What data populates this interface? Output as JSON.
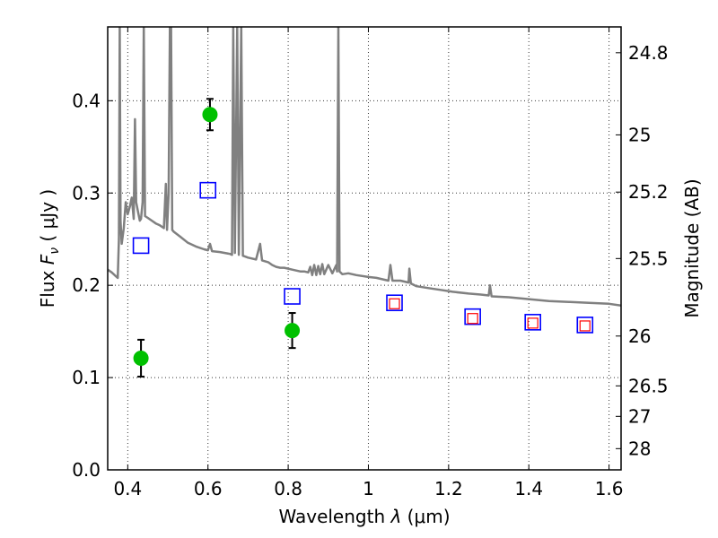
{
  "chart_data": {
    "type": "scatter",
    "xlabel": "Wavelength  λ (μm)",
    "ylabel": "Flux  F_ν  ( μJy )",
    "ylabel_parts": {
      "prefix": "Flux  ",
      "symbol": "F",
      "subscript": "ν",
      "suffix": "  ( μJy )"
    },
    "xlabel_parts": {
      "prefix": "Wavelength  ",
      "symbol": "λ",
      "suffix": " (μm)"
    },
    "y2label": "Magnitude (AB)",
    "xlim": [
      0.35,
      1.63
    ],
    "ylim": [
      0.0,
      0.48
    ],
    "x_ticks": [
      0.4,
      0.6,
      0.8,
      1.0,
      1.2,
      1.4,
      1.6
    ],
    "x_tick_labels": [
      "0.4",
      "0.6",
      "0.8",
      "1",
      "1.2",
      "1.4",
      "1.6"
    ],
    "y_ticks": [
      0.0,
      0.1,
      0.2,
      0.3,
      0.4
    ],
    "y_tick_labels": [
      "0.0",
      "0.1",
      "0.2",
      "0.3",
      "0.4"
    ],
    "magnitude_ticks": [
      {
        "flux": 0.452,
        "label": "24.8"
      },
      {
        "flux": 0.363,
        "label": "25"
      },
      {
        "flux": 0.301,
        "label": "25.2"
      },
      {
        "flux": 0.229,
        "label": "25.5"
      },
      {
        "flux": 0.145,
        "label": "26"
      },
      {
        "flux": 0.091,
        "label": "26.5"
      },
      {
        "flux": 0.058,
        "label": "27"
      },
      {
        "flux": 0.023,
        "label": "28"
      }
    ],
    "grid": true,
    "series": [
      {
        "style": "line",
        "color": "#808080",
        "points": [
          [
            0.35,
            0.217
          ],
          [
            0.36,
            0.214
          ],
          [
            0.37,
            0.21
          ],
          [
            0.375,
            0.208
          ],
          [
            0.378,
            0.25
          ],
          [
            0.38,
            0.48
          ],
          [
            0.382,
            0.27
          ],
          [
            0.385,
            0.245
          ],
          [
            0.39,
            0.262
          ],
          [
            0.395,
            0.29
          ],
          [
            0.4,
            0.277
          ],
          [
            0.405,
            0.285
          ],
          [
            0.41,
            0.295
          ],
          [
            0.415,
            0.272
          ],
          [
            0.418,
            0.38
          ],
          [
            0.421,
            0.29
          ],
          [
            0.425,
            0.281
          ],
          [
            0.43,
            0.27
          ],
          [
            0.433,
            0.272
          ],
          [
            0.437,
            0.29
          ],
          [
            0.44,
            0.48
          ],
          [
            0.443,
            0.275
          ],
          [
            0.45,
            0.273
          ],
          [
            0.46,
            0.27
          ],
          [
            0.47,
            0.267
          ],
          [
            0.48,
            0.265
          ],
          [
            0.49,
            0.262
          ],
          [
            0.495,
            0.31
          ],
          [
            0.498,
            0.26
          ],
          [
            0.502,
            0.3
          ],
          [
            0.505,
            0.48
          ],
          [
            0.508,
            0.48
          ],
          [
            0.511,
            0.26
          ],
          [
            0.515,
            0.258
          ],
          [
            0.53,
            0.253
          ],
          [
            0.55,
            0.246
          ],
          [
            0.57,
            0.242
          ],
          [
            0.59,
            0.239
          ],
          [
            0.6,
            0.238
          ],
          [
            0.605,
            0.245
          ],
          [
            0.61,
            0.237
          ],
          [
            0.63,
            0.236
          ],
          [
            0.655,
            0.234
          ],
          [
            0.66,
            0.233
          ],
          [
            0.663,
            0.48
          ],
          [
            0.667,
            0.235
          ],
          [
            0.673,
            0.48
          ],
          [
            0.677,
            0.233
          ],
          [
            0.683,
            0.48
          ],
          [
            0.687,
            0.232
          ],
          [
            0.7,
            0.23
          ],
          [
            0.72,
            0.228
          ],
          [
            0.73,
            0.245
          ],
          [
            0.735,
            0.227
          ],
          [
            0.75,
            0.225
          ],
          [
            0.76,
            0.222
          ],
          [
            0.77,
            0.22
          ],
          [
            0.78,
            0.219
          ],
          [
            0.79,
            0.219
          ],
          [
            0.8,
            0.218
          ],
          [
            0.81,
            0.217
          ],
          [
            0.82,
            0.216
          ],
          [
            0.83,
            0.215
          ],
          [
            0.84,
            0.215
          ],
          [
            0.85,
            0.214
          ],
          [
            0.855,
            0.22
          ],
          [
            0.86,
            0.211
          ],
          [
            0.865,
            0.222
          ],
          [
            0.87,
            0.211
          ],
          [
            0.875,
            0.221
          ],
          [
            0.88,
            0.212
          ],
          [
            0.885,
            0.223
          ],
          [
            0.89,
            0.212
          ],
          [
            0.9,
            0.222
          ],
          [
            0.91,
            0.213
          ],
          [
            0.92,
            0.222
          ],
          [
            0.922,
            0.215
          ],
          [
            0.925,
            0.48
          ],
          [
            0.928,
            0.215
          ],
          [
            0.935,
            0.212
          ],
          [
            0.95,
            0.213
          ],
          [
            0.97,
            0.211
          ],
          [
            1.0,
            0.209
          ],
          [
            1.02,
            0.208
          ],
          [
            1.05,
            0.205
          ],
          [
            1.055,
            0.222
          ],
          [
            1.06,
            0.205
          ],
          [
            1.08,
            0.205
          ],
          [
            1.1,
            0.203
          ],
          [
            1.102,
            0.218
          ],
          [
            1.106,
            0.202
          ],
          [
            1.12,
            0.199
          ],
          [
            1.15,
            0.197
          ],
          [
            1.18,
            0.195
          ],
          [
            1.21,
            0.193
          ],
          [
            1.25,
            0.191
          ],
          [
            1.28,
            0.19
          ],
          [
            1.3,
            0.189
          ],
          [
            1.303,
            0.2
          ],
          [
            1.307,
            0.188
          ],
          [
            1.35,
            0.187
          ],
          [
            1.4,
            0.185
          ],
          [
            1.45,
            0.183
          ],
          [
            1.5,
            0.182
          ],
          [
            1.55,
            0.181
          ],
          [
            1.6,
            0.18
          ],
          [
            1.63,
            0.178
          ]
        ]
      },
      {
        "style": "blue-square",
        "color": "#0000ff",
        "points": [
          [
            0.433,
            0.243
          ],
          [
            0.6,
            0.303
          ],
          [
            0.81,
            0.188
          ],
          [
            1.065,
            0.181
          ],
          [
            1.26,
            0.166
          ],
          [
            1.41,
            0.16
          ],
          [
            1.54,
            0.157
          ]
        ]
      },
      {
        "style": "red-square",
        "color": "#ff0000",
        "points": [
          [
            1.065,
            0.18
          ],
          [
            1.26,
            0.164
          ],
          [
            1.41,
            0.159
          ],
          [
            1.54,
            0.156
          ]
        ]
      },
      {
        "style": "green-circle",
        "color": "#00c000",
        "points": [
          [
            0.433,
            0.121,
            0.02
          ],
          [
            0.605,
            0.385,
            0.017
          ],
          [
            0.81,
            0.151,
            0.019
          ]
        ]
      }
    ]
  }
}
